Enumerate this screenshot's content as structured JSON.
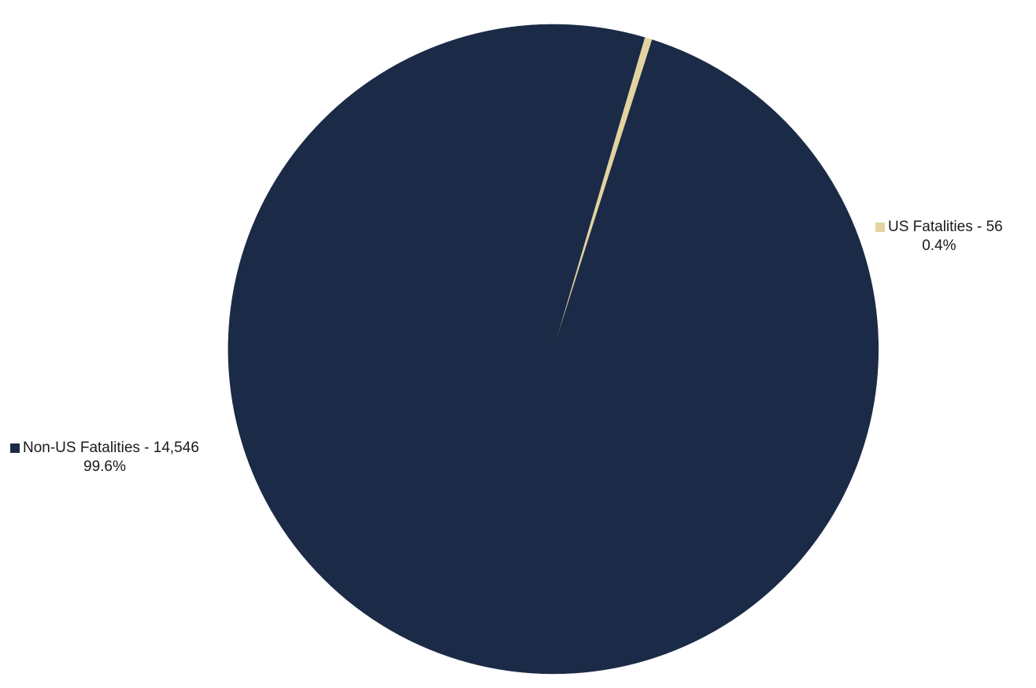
{
  "chart_data": {
    "type": "pie",
    "title": "",
    "start_angle_deg": 73.7,
    "direction": "clockwise",
    "slices": [
      {
        "name": "US Fatalities",
        "value": 56,
        "label": "US Fatalities - 56",
        "percent_label": "0.4%",
        "color": "#e3d3a0"
      },
      {
        "name": "Non-US Fatalities",
        "value": 14546,
        "label": "Non-US Fatalities - 14,546",
        "percent_label": "99.6%",
        "color": "#1b2a46"
      }
    ]
  }
}
